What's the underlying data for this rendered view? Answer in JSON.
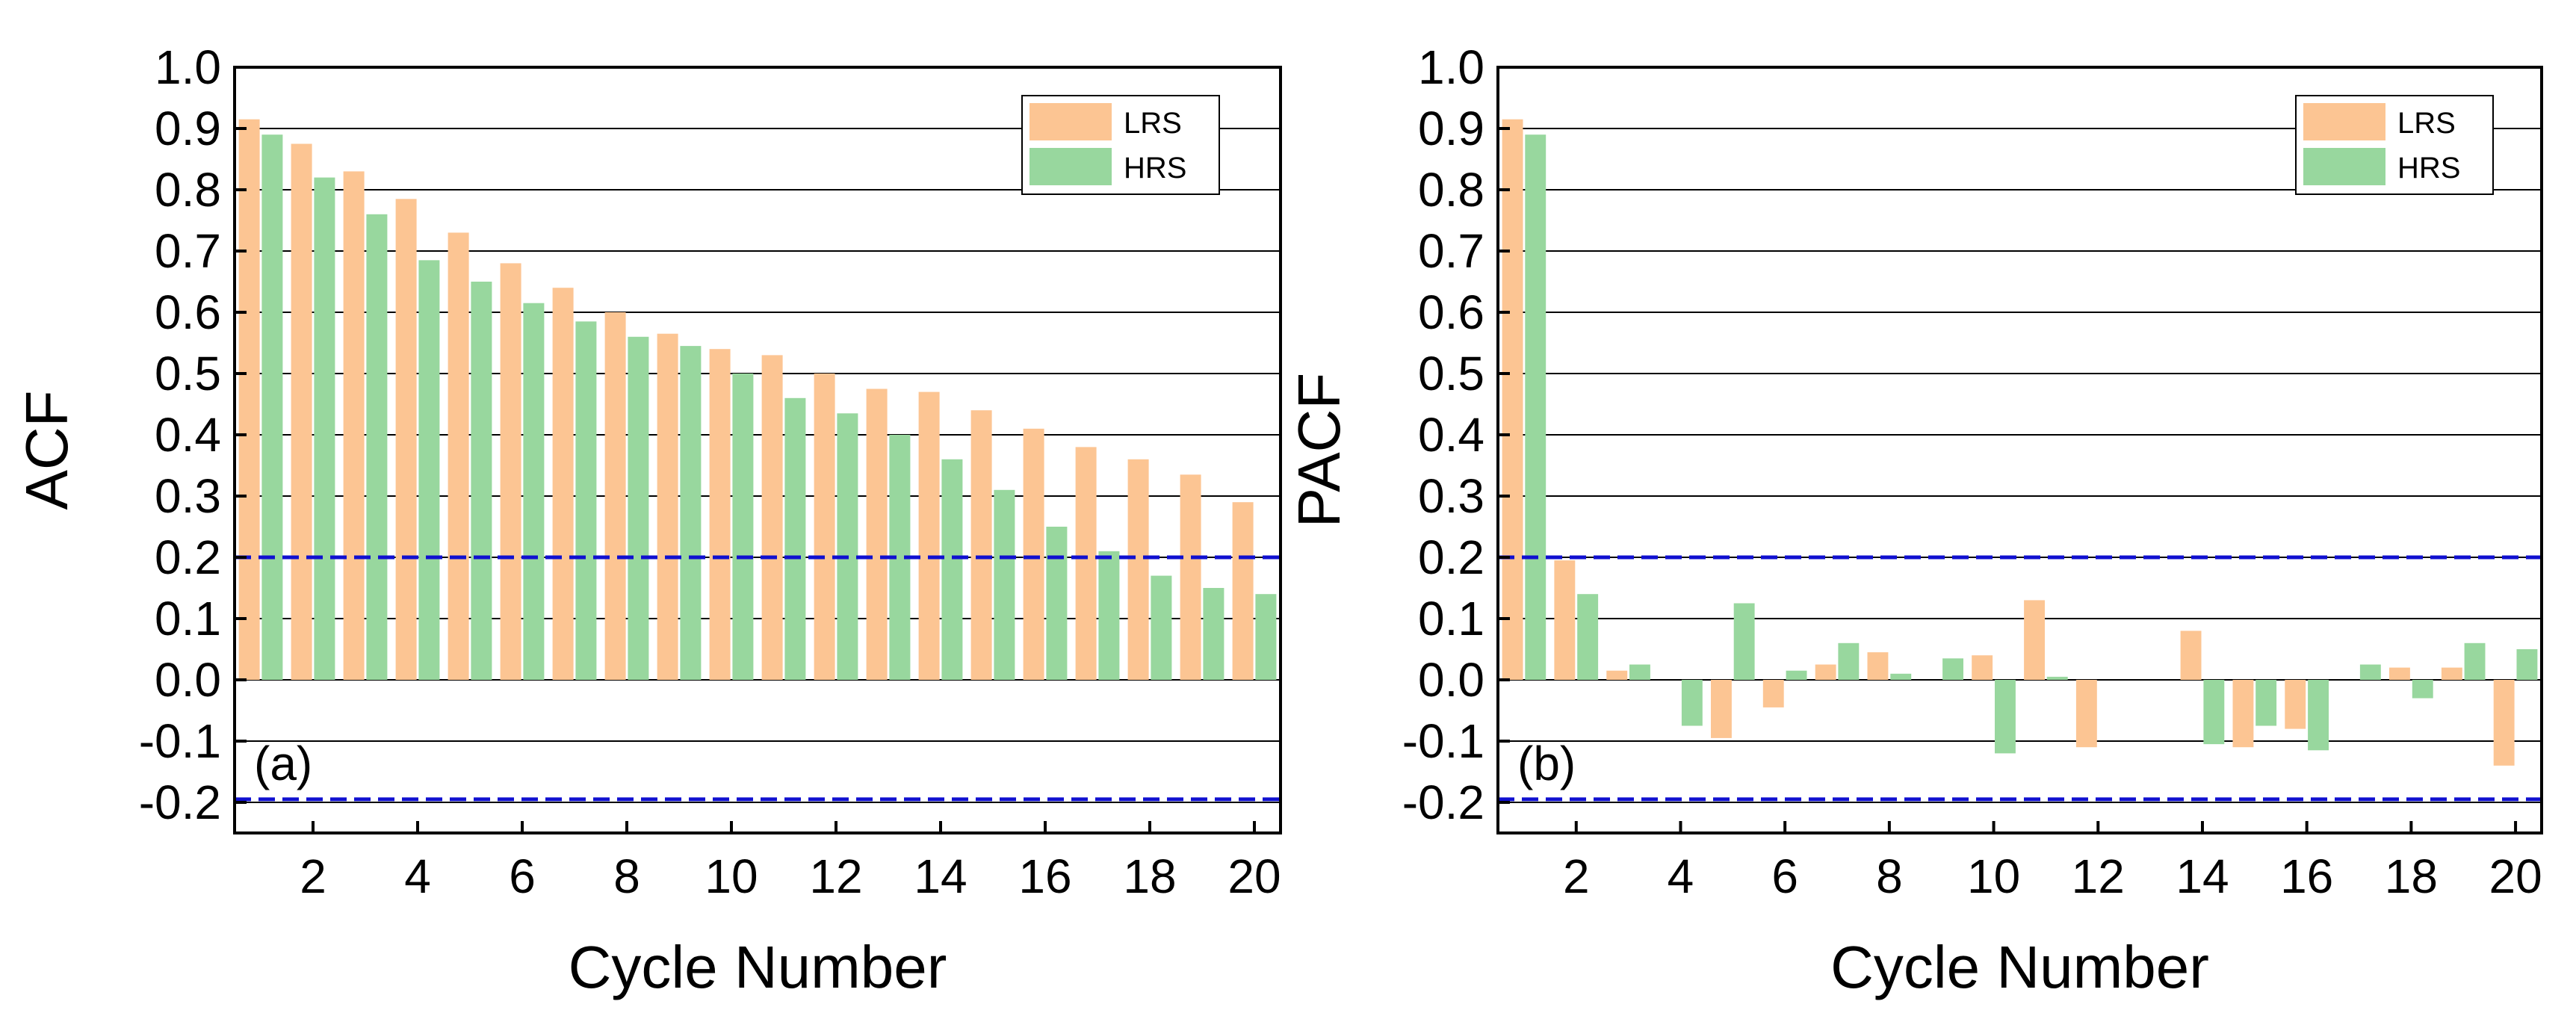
{
  "colors": {
    "lrs": "#FCC593",
    "hrs": "#98D79E",
    "confidence_line": "#1010D0",
    "grid": "#000000"
  },
  "chart_data": [
    {
      "type": "bar",
      "panel_label": "(a)",
      "xlabel": "Cycle Number",
      "ylabel": "ACF",
      "x": [
        1,
        2,
        3,
        4,
        5,
        6,
        7,
        8,
        9,
        10,
        11,
        12,
        13,
        14,
        15,
        16,
        17,
        18,
        19,
        20
      ],
      "x_tick_labels": [
        "2",
        "4",
        "6",
        "8",
        "10",
        "12",
        "14",
        "16",
        "18",
        "20"
      ],
      "y_tick_labels": [
        "1.0",
        "0.9",
        "0.8",
        "0.7",
        "0.6",
        "0.5",
        "0.4",
        "0.3",
        "0.2",
        "0.1",
        "0.0",
        "-0.1",
        "-0.2"
      ],
      "ylim": [
        -0.25,
        1.0
      ],
      "grid": true,
      "legend_placement": "top-right",
      "confidence_bounds": [
        0.2,
        -0.195
      ],
      "series": [
        {
          "name": "LRS",
          "values": [
            0.915,
            0.875,
            0.83,
            0.785,
            0.73,
            0.68,
            0.64,
            0.6,
            0.565,
            0.54,
            0.53,
            0.5,
            0.475,
            0.47,
            0.44,
            0.41,
            0.38,
            0.36,
            0.335,
            0.29
          ]
        },
        {
          "name": "HRS",
          "values": [
            0.89,
            0.82,
            0.76,
            0.685,
            0.65,
            0.615,
            0.585,
            0.56,
            0.545,
            0.5,
            0.46,
            0.435,
            0.4,
            0.36,
            0.31,
            0.25,
            0.21,
            0.17,
            0.15,
            0.14
          ]
        }
      ]
    },
    {
      "type": "bar",
      "panel_label": "(b)",
      "xlabel": "Cycle Number",
      "ylabel": "PACF",
      "x": [
        1,
        2,
        3,
        4,
        5,
        6,
        7,
        8,
        9,
        10,
        11,
        12,
        13,
        14,
        15,
        16,
        17,
        18,
        19,
        20
      ],
      "x_tick_labels": [
        "2",
        "4",
        "6",
        "8",
        "10",
        "12",
        "14",
        "16",
        "18",
        "20"
      ],
      "y_tick_labels": [
        "1.0",
        "0.9",
        "0.8",
        "0.7",
        "0.6",
        "0.5",
        "0.4",
        "0.3",
        "0.2",
        "0.1",
        "0.0",
        "-0.1",
        "-0.2"
      ],
      "ylim": [
        -0.25,
        1.0
      ],
      "grid": true,
      "legend_placement": "top-right",
      "confidence_bounds": [
        0.2,
        -0.195
      ],
      "series": [
        {
          "name": "LRS",
          "values": [
            0.915,
            0.195,
            0.015,
            0.0,
            -0.095,
            -0.045,
            0.025,
            0.045,
            0.0,
            0.04,
            0.13,
            -0.11,
            0.0,
            0.08,
            -0.11,
            -0.08,
            0.0,
            0.02,
            0.02,
            -0.14
          ]
        },
        {
          "name": "HRS",
          "values": [
            0.89,
            0.14,
            0.025,
            -0.075,
            0.125,
            0.015,
            0.06,
            0.01,
            0.035,
            -0.12,
            0.005,
            0.0,
            0.0,
            -0.105,
            -0.075,
            -0.115,
            0.025,
            -0.03,
            0.06,
            0.05
          ]
        }
      ]
    }
  ]
}
